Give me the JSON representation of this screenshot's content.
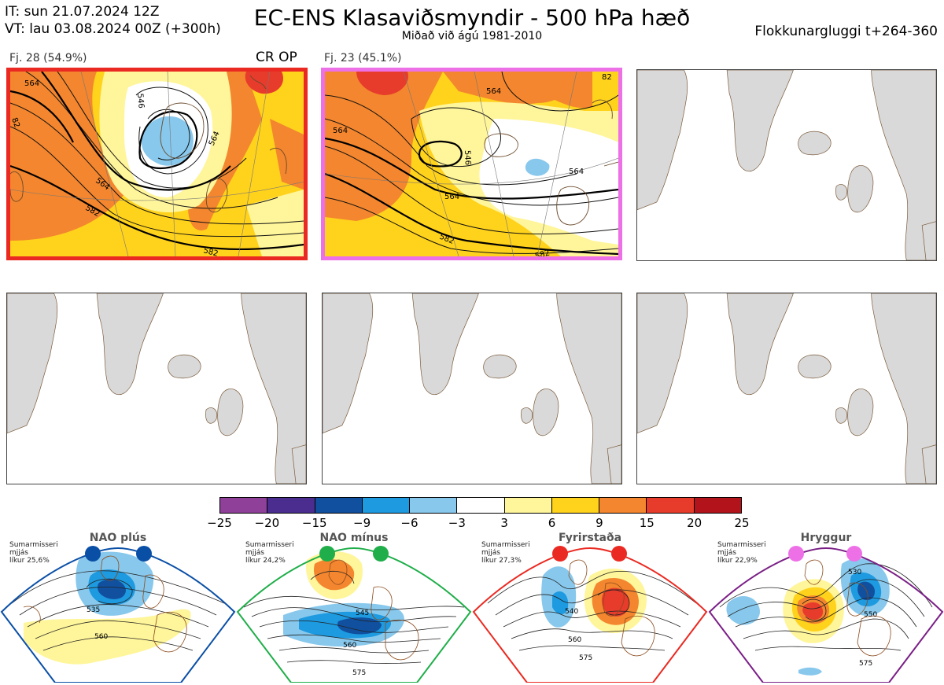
{
  "header": {
    "init_time": "IT: sun 21.07.2024 12Z",
    "valid_time": "VT: lau 03.08.2024 00Z  (+300h)",
    "title": "EC-ENS Klasaviðsmyndir - 500 hPa hæð",
    "subtitle": "Miðað við ágú 1981-2010",
    "window": "Flokkunargluggi t+264-360"
  },
  "clusters": [
    {
      "label": "Fj. 28 (54.9%)",
      "tag": "CR OP",
      "border_color": "#ea2a22",
      "contour_labels": [
        "564",
        "546",
        "564",
        "582",
        "582",
        "82",
        "564"
      ]
    },
    {
      "label": "Fj. 23 (45.1%)",
      "tag": "",
      "border_color": "#ee70e6",
      "contour_labels": [
        "564",
        "564",
        "546",
        "564",
        "564",
        "582",
        "582",
        "82"
      ]
    }
  ],
  "colorbar": {
    "ticks": [
      "−25",
      "−20",
      "−15",
      "−9",
      "−6",
      "−3",
      "3",
      "6",
      "9",
      "15",
      "20",
      "25"
    ],
    "colors": [
      "#8f4199",
      "#4a2d8f",
      "#10509f",
      "#1e9ae0",
      "#88c8ec",
      "#ffffff",
      "#fff59a",
      "#ffd21c",
      "#f3862e",
      "#e73b2c",
      "#b3141b"
    ]
  },
  "regimes": [
    {
      "name": "NAO plús",
      "info": [
        "Sumarmisseri",
        "mjjás",
        "líkur 25,6%"
      ],
      "dot_color": "#0a4fa6",
      "frame_color": "#0a4fa6",
      "contour_labels": [
        "535",
        "560"
      ]
    },
    {
      "name": "NAO mínus",
      "info": [
        "Sumarmisseri",
        "mjjás",
        "líkur 24,2%"
      ],
      "dot_color": "#1fae49",
      "frame_color": "#1fae49",
      "contour_labels": [
        "545",
        "560",
        "575"
      ]
    },
    {
      "name": "Fyrirstaða",
      "info": [
        "Sumarmisseri",
        "mjjás",
        "líkur 27,3%"
      ],
      "dot_color": "#ea2a22",
      "frame_color": "#ea2a22",
      "contour_labels": [
        "540",
        "560",
        "575"
      ]
    },
    {
      "name": "Hryggur",
      "info": [
        "Sumarmisseri",
        "mjjás",
        "líkur 22,9%"
      ],
      "dot_color": "#ee70e6",
      "frame_color": "#7a1f86",
      "contour_labels": [
        "530",
        "550",
        "575"
      ]
    }
  ]
}
